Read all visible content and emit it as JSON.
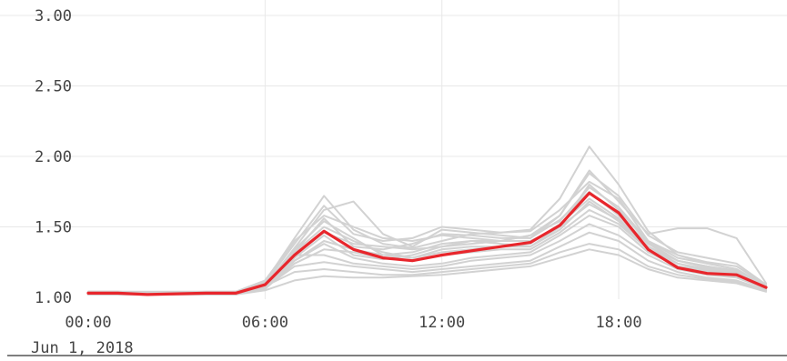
{
  "chart_data": {
    "type": "line",
    "title": "",
    "xlabel": "",
    "ylabel": "",
    "ylim": [
      1.0,
      3.0
    ],
    "x_ticks": [
      {
        "hour": 0,
        "label": "00:00"
      },
      {
        "hour": 6,
        "label": "06:00"
      },
      {
        "hour": 12,
        "label": "12:00"
      },
      {
        "hour": 18,
        "label": "18:00"
      }
    ],
    "x_date_label": "Jun 1, 2018",
    "y_ticks": [
      {
        "value": 1.0,
        "label": "1.00"
      },
      {
        "value": 1.5,
        "label": "1.50"
      },
      {
        "value": 2.0,
        "label": "2.00"
      },
      {
        "value": 2.5,
        "label": "2.50"
      },
      {
        "value": 3.0,
        "label": "3.00"
      }
    ],
    "grid": true,
    "colors": {
      "highlight": "#e8262c",
      "background_series": "#d2d2d2",
      "grid": "#e8e8e8"
    },
    "x": [
      0,
      1,
      2,
      3,
      4,
      5,
      6,
      7,
      8,
      9,
      10,
      11,
      12,
      13,
      14,
      15,
      16,
      17,
      18,
      19,
      20,
      21,
      22,
      23
    ],
    "highlighted_series": {
      "values": [
        1.03,
        1.03,
        1.02,
        1.025,
        1.03,
        1.03,
        1.09,
        1.3,
        1.47,
        1.34,
        1.28,
        1.26,
        1.3,
        1.33,
        1.36,
        1.39,
        1.51,
        1.74,
        1.6,
        1.34,
        1.21,
        1.17,
        1.16,
        1.07
      ]
    },
    "background_series": [
      {
        "values": [
          1.04,
          1.04,
          1.03,
          1.03,
          1.03,
          1.04,
          1.11,
          1.42,
          1.72,
          1.48,
          1.38,
          1.35,
          1.4,
          1.45,
          1.46,
          1.48,
          1.7,
          2.07,
          1.8,
          1.47,
          1.3,
          1.25,
          1.22,
          1.09
        ]
      },
      {
        "values": [
          1.03,
          1.03,
          1.02,
          1.03,
          1.03,
          1.03,
          1.08,
          1.35,
          1.62,
          1.68,
          1.45,
          1.36,
          1.48,
          1.46,
          1.44,
          1.42,
          1.58,
          1.9,
          1.68,
          1.45,
          1.49,
          1.49,
          1.42,
          1.1
        ]
      },
      {
        "values": [
          1.02,
          1.02,
          1.02,
          1.02,
          1.02,
          1.02,
          1.07,
          1.28,
          1.44,
          1.3,
          1.27,
          1.3,
          1.36,
          1.4,
          1.38,
          1.36,
          1.5,
          1.8,
          1.62,
          1.39,
          1.26,
          1.22,
          1.18,
          1.07
        ]
      },
      {
        "values": [
          1.03,
          1.03,
          1.02,
          1.02,
          1.03,
          1.03,
          1.1,
          1.32,
          1.5,
          1.4,
          1.32,
          1.28,
          1.34,
          1.36,
          1.36,
          1.38,
          1.52,
          1.7,
          1.56,
          1.36,
          1.24,
          1.2,
          1.17,
          1.08
        ]
      },
      {
        "values": [
          1.02,
          1.02,
          1.02,
          1.02,
          1.02,
          1.02,
          1.06,
          1.26,
          1.38,
          1.28,
          1.24,
          1.22,
          1.24,
          1.28,
          1.3,
          1.32,
          1.44,
          1.58,
          1.5,
          1.32,
          1.22,
          1.18,
          1.15,
          1.06
        ]
      },
      {
        "values": [
          1.03,
          1.03,
          1.03,
          1.03,
          1.03,
          1.03,
          1.09,
          1.3,
          1.3,
          1.24,
          1.22,
          1.2,
          1.22,
          1.26,
          1.28,
          1.3,
          1.4,
          1.52,
          1.44,
          1.3,
          1.2,
          1.16,
          1.14,
          1.06
        ]
      },
      {
        "values": [
          1.02,
          1.02,
          1.02,
          1.02,
          1.02,
          1.02,
          1.07,
          1.22,
          1.25,
          1.22,
          1.2,
          1.18,
          1.2,
          1.22,
          1.24,
          1.26,
          1.36,
          1.46,
          1.4,
          1.26,
          1.18,
          1.14,
          1.12,
          1.05
        ]
      },
      {
        "values": [
          1.03,
          1.03,
          1.02,
          1.02,
          1.02,
          1.03,
          1.08,
          1.18,
          1.2,
          1.18,
          1.16,
          1.16,
          1.18,
          1.2,
          1.22,
          1.24,
          1.32,
          1.38,
          1.34,
          1.22,
          1.16,
          1.13,
          1.11,
          1.05
        ]
      },
      {
        "values": [
          1.04,
          1.04,
          1.03,
          1.03,
          1.04,
          1.04,
          1.1,
          1.38,
          1.65,
          1.45,
          1.4,
          1.42,
          1.5,
          1.48,
          1.46,
          1.47,
          1.62,
          1.82,
          1.7,
          1.4,
          1.28,
          1.24,
          1.2,
          1.08
        ]
      },
      {
        "values": [
          1.03,
          1.03,
          1.03,
          1.03,
          1.03,
          1.03,
          1.07,
          1.32,
          1.56,
          1.36,
          1.34,
          1.38,
          1.45,
          1.44,
          1.42,
          1.42,
          1.55,
          1.75,
          1.58,
          1.38,
          1.26,
          1.21,
          1.18,
          1.07
        ]
      },
      {
        "values": [
          1.02,
          1.02,
          1.02,
          1.02,
          1.02,
          1.02,
          1.06,
          1.24,
          1.34,
          1.32,
          1.28,
          1.26,
          1.3,
          1.32,
          1.34,
          1.34,
          1.46,
          1.62,
          1.52,
          1.34,
          1.24,
          1.19,
          1.16,
          1.06
        ]
      },
      {
        "values": [
          1.03,
          1.03,
          1.02,
          1.02,
          1.03,
          1.03,
          1.08,
          1.3,
          1.46,
          1.38,
          1.36,
          1.34,
          1.36,
          1.38,
          1.4,
          1.4,
          1.5,
          1.66,
          1.55,
          1.36,
          1.26,
          1.22,
          1.19,
          1.07
        ]
      },
      {
        "values": [
          1.02,
          1.02,
          1.02,
          1.02,
          1.02,
          1.02,
          1.05,
          1.12,
          1.15,
          1.14,
          1.14,
          1.15,
          1.16,
          1.18,
          1.2,
          1.22,
          1.28,
          1.34,
          1.3,
          1.2,
          1.14,
          1.12,
          1.1,
          1.04
        ]
      },
      {
        "values": [
          1.04,
          1.04,
          1.04,
          1.04,
          1.04,
          1.04,
          1.12,
          1.4,
          1.58,
          1.5,
          1.42,
          1.4,
          1.44,
          1.42,
          1.4,
          1.44,
          1.58,
          1.88,
          1.72,
          1.44,
          1.32,
          1.28,
          1.24,
          1.09
        ]
      },
      {
        "values": [
          1.03,
          1.03,
          1.03,
          1.03,
          1.03,
          1.03,
          1.09,
          1.34,
          1.54,
          1.42,
          1.3,
          1.32,
          1.38,
          1.4,
          1.4,
          1.44,
          1.54,
          1.78,
          1.64,
          1.4,
          1.3,
          1.24,
          1.2,
          1.08
        ]
      },
      {
        "values": [
          1.02,
          1.02,
          1.02,
          1.02,
          1.02,
          1.02,
          1.07,
          1.26,
          1.4,
          1.34,
          1.3,
          1.28,
          1.32,
          1.34,
          1.36,
          1.36,
          1.48,
          1.68,
          1.54,
          1.34,
          1.22,
          1.19,
          1.16,
          1.07
        ]
      }
    ]
  }
}
